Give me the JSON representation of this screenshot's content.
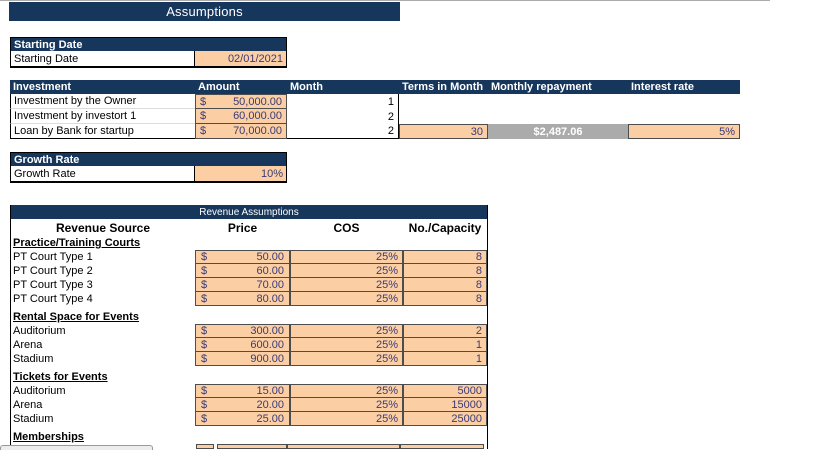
{
  "page_title": "Assumptions",
  "colors": {
    "navy": "#16365C",
    "peach": "#FBCFA3",
    "value_text": "#3A3A78",
    "computed_gray": "#ABABAB"
  },
  "starting_date": {
    "header": "Starting Date",
    "label": "Starting Date",
    "value": "02/01/2021"
  },
  "investment": {
    "headers": {
      "investment": "Investment",
      "amount": "Amount",
      "month": "Month",
      "terms": "Terms in Month",
      "repayment": "Monthly repayment",
      "interest": "Interest rate"
    },
    "rows": [
      {
        "label": "Investment by the Owner",
        "currency": "$",
        "amount": "50,000.00",
        "month": "1",
        "terms": "",
        "repayment": "",
        "interest": ""
      },
      {
        "label": "Investment by investort 1",
        "currency": "$",
        "amount": "60,000.00",
        "month": "2",
        "terms": "",
        "repayment": "",
        "interest": ""
      },
      {
        "label": "Loan by Bank for startup",
        "currency": "$",
        "amount": "70,000.00",
        "month": "2",
        "terms": "30",
        "repayment": "$2,487.06",
        "interest": "5%"
      }
    ]
  },
  "growth_rate": {
    "header": "Growth Rate",
    "label": "Growth Rate",
    "value": "10%"
  },
  "revenue": {
    "title": "Revenue Assumptions",
    "columns": {
      "source": "Revenue Source",
      "price": "Price",
      "cos": "COS",
      "capacity": "No./Capacity"
    },
    "sections": [
      {
        "name": "Practice/Training Courts",
        "rows": [
          {
            "label": "PT Court Type 1",
            "currency": "$",
            "price": "50.00",
            "cos": "25%",
            "capacity": "8"
          },
          {
            "label": "PT Court Type 2",
            "currency": "$",
            "price": "60.00",
            "cos": "25%",
            "capacity": "8"
          },
          {
            "label": "PT Court Type 3",
            "currency": "$",
            "price": "70.00",
            "cos": "25%",
            "capacity": "8"
          },
          {
            "label": "PT Court Type 4",
            "currency": "$",
            "price": "80.00",
            "cos": "25%",
            "capacity": "8"
          }
        ]
      },
      {
        "name": "Rental Space for Events",
        "rows": [
          {
            "label": "Auditorium",
            "currency": "$",
            "price": "300.00",
            "cos": "25%",
            "capacity": "2"
          },
          {
            "label": "Arena",
            "currency": "$",
            "price": "600.00",
            "cos": "25%",
            "capacity": "1"
          },
          {
            "label": "Stadium",
            "currency": "$",
            "price": "900.00",
            "cos": "25%",
            "capacity": "1"
          }
        ]
      },
      {
        "name": "Tickets for Events",
        "rows": [
          {
            "label": "Auditorium",
            "currency": "$",
            "price": "15.00",
            "cos": "25%",
            "capacity": "5000"
          },
          {
            "label": "Arena",
            "currency": "$",
            "price": "20.00",
            "cos": "25%",
            "capacity": "15000"
          },
          {
            "label": "Stadium",
            "currency": "$",
            "price": "25.00",
            "cos": "25%",
            "capacity": "25000"
          }
        ]
      },
      {
        "name": "Memberships",
        "rows": []
      }
    ],
    "partial_next_row_visible": true
  }
}
